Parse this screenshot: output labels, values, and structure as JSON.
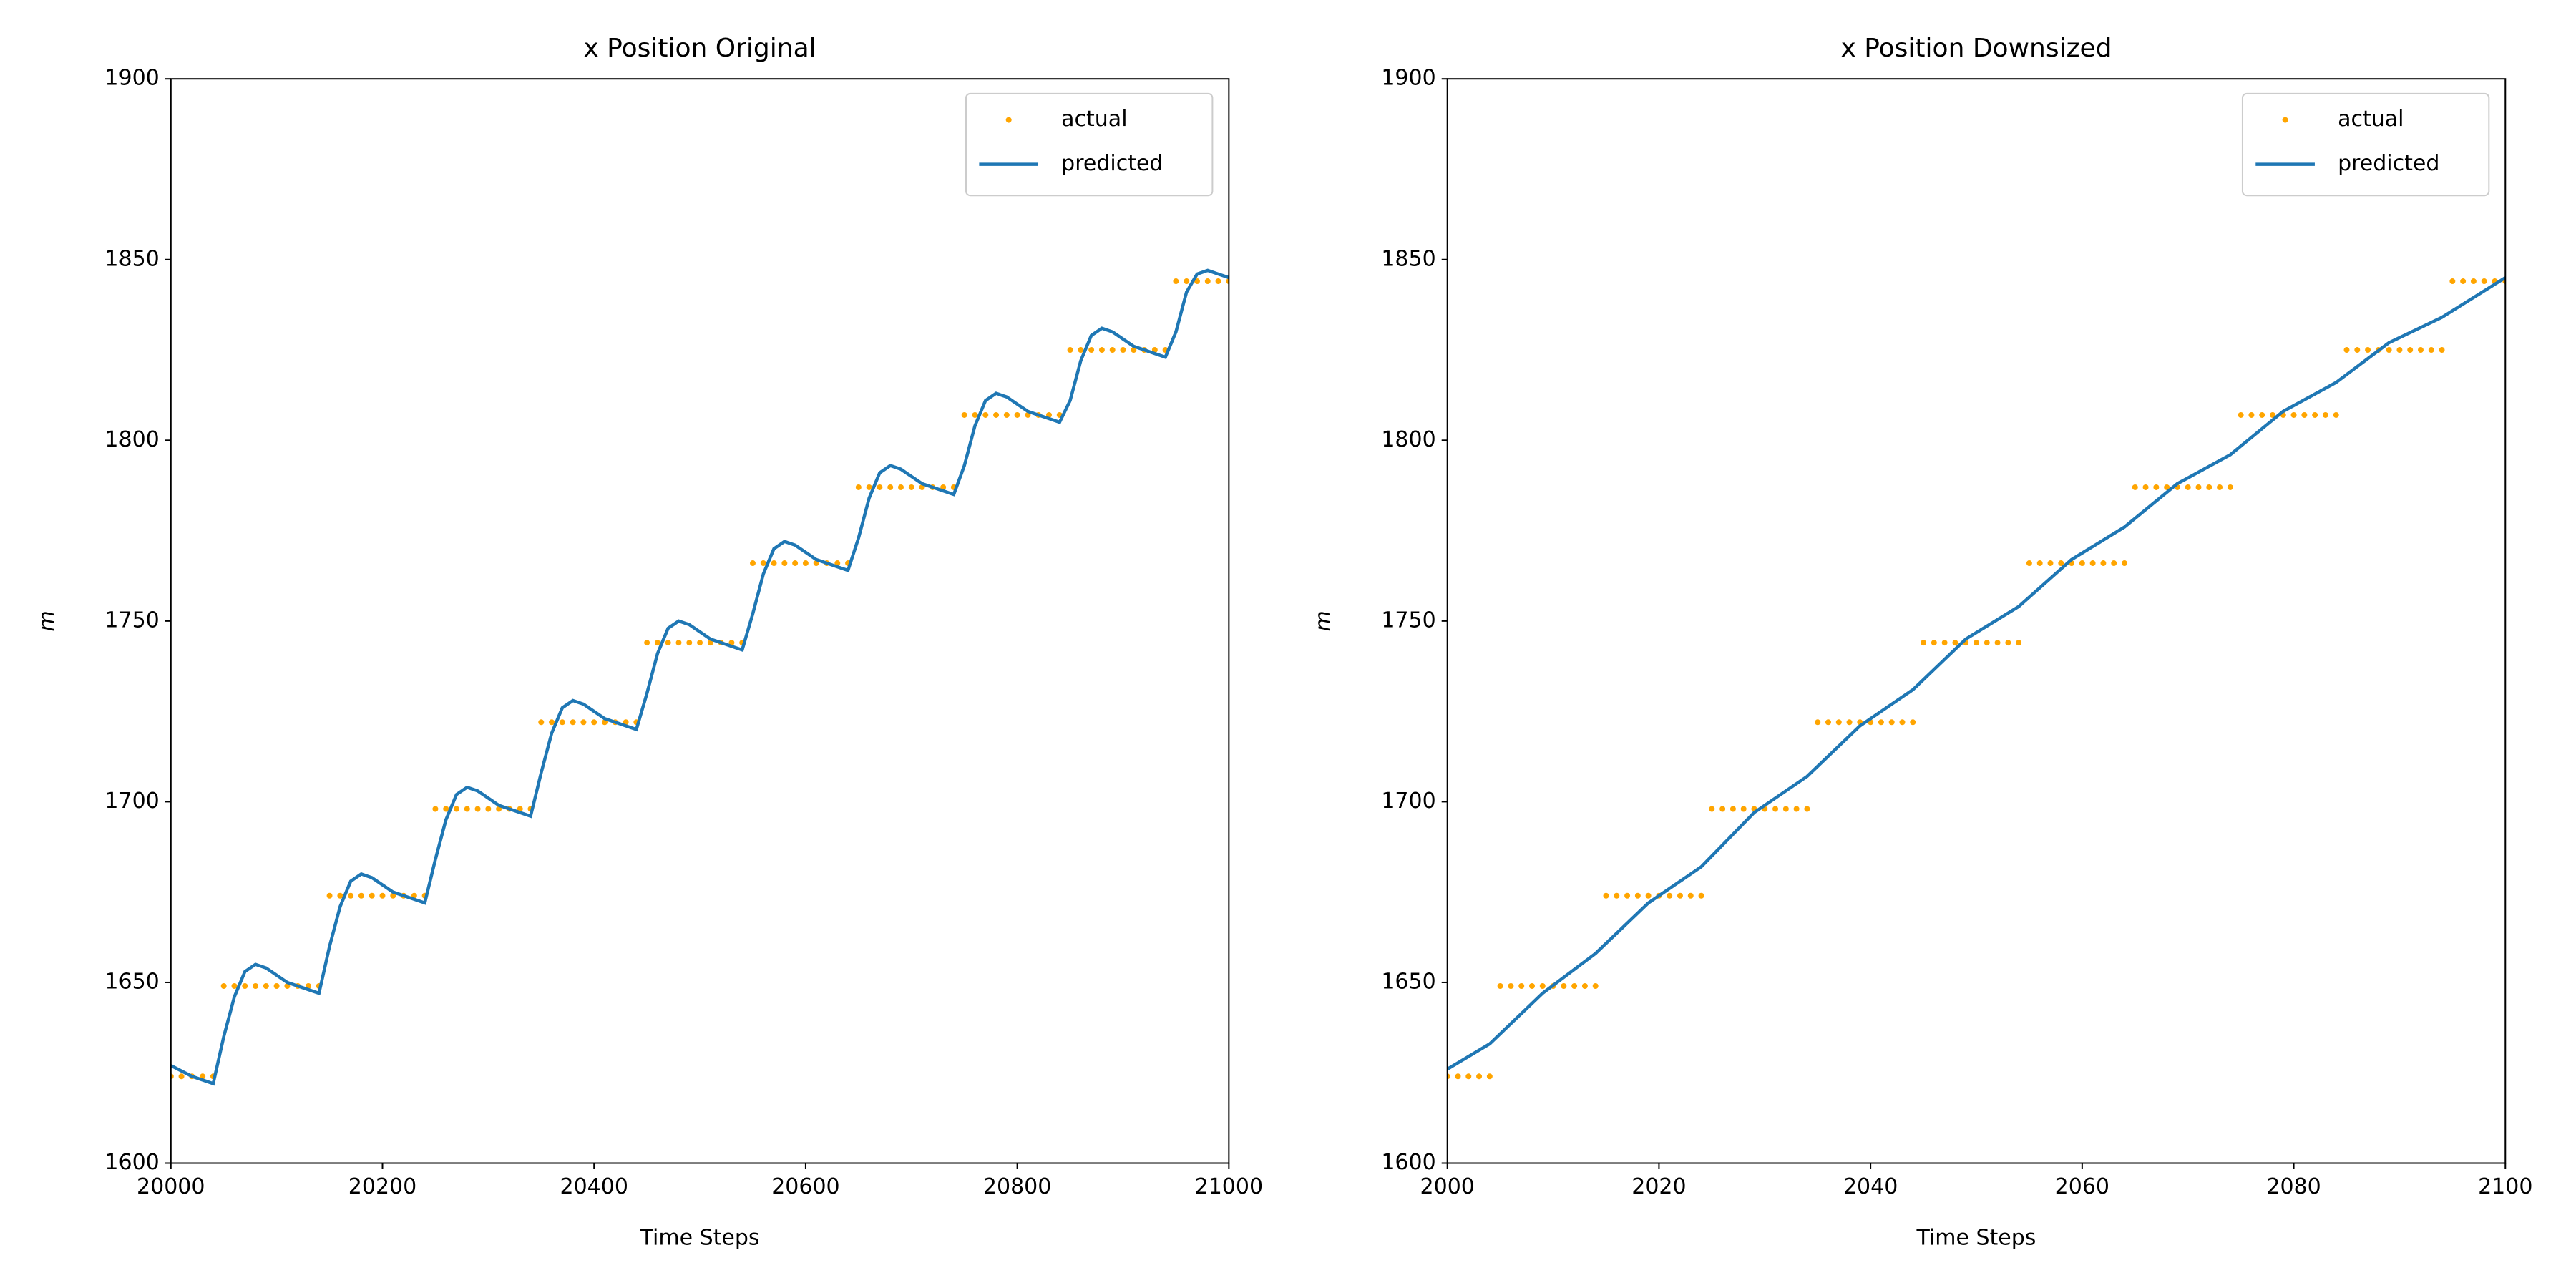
{
  "chart_data": [
    {
      "type": "line",
      "title": "x Position Original",
      "xlabel": "Time Steps",
      "ylabel": "m",
      "xlim": [
        20000,
        21000
      ],
      "xticks": [
        20000,
        20200,
        20400,
        20600,
        20800,
        21000
      ],
      "ylim": [
        1600,
        1900
      ],
      "yticks": [
        1600,
        1650,
        1700,
        1750,
        1800,
        1850,
        1900
      ],
      "legend": "upper right",
      "series": [
        {
          "name": "actual",
          "color": "#ffa500",
          "mode": "markers",
          "x": [
            20000,
            20010,
            20020,
            20030,
            20040,
            20050,
            20060,
            20070,
            20080,
            20090,
            20100,
            20110,
            20120,
            20130,
            20140,
            20150,
            20160,
            20170,
            20180,
            20190,
            20200,
            20210,
            20220,
            20230,
            20240,
            20250,
            20260,
            20270,
            20280,
            20290,
            20300,
            20310,
            20320,
            20330,
            20340,
            20350,
            20360,
            20370,
            20380,
            20390,
            20400,
            20410,
            20420,
            20430,
            20440,
            20450,
            20460,
            20470,
            20480,
            20490,
            20500,
            20510,
            20520,
            20530,
            20540,
            20550,
            20560,
            20570,
            20580,
            20590,
            20600,
            20610,
            20620,
            20630,
            20640,
            20650,
            20660,
            20670,
            20680,
            20690,
            20700,
            20710,
            20720,
            20730,
            20740,
            20750,
            20760,
            20770,
            20780,
            20790,
            20800,
            20810,
            20820,
            20830,
            20840,
            20850,
            20860,
            20870,
            20880,
            20890,
            20900,
            20910,
            20920,
            20930,
            20940,
            20950,
            20960,
            20970,
            20980,
            20990,
            21000
          ],
          "values": [
            1624,
            1624,
            1624,
            1624,
            1624,
            1649,
            1649,
            1649,
            1649,
            1649,
            1649,
            1649,
            1649,
            1649,
            1649,
            1674,
            1674,
            1674,
            1674,
            1674,
            1674,
            1674,
            1674,
            1674,
            1674,
            1698,
            1698,
            1698,
            1698,
            1698,
            1698,
            1698,
            1698,
            1698,
            1698,
            1722,
            1722,
            1722,
            1722,
            1722,
            1722,
            1722,
            1722,
            1722,
            1722,
            1744,
            1744,
            1744,
            1744,
            1744,
            1744,
            1744,
            1744,
            1744,
            1744,
            1766,
            1766,
            1766,
            1766,
            1766,
            1766,
            1766,
            1766,
            1766,
            1766,
            1787,
            1787,
            1787,
            1787,
            1787,
            1787,
            1787,
            1787,
            1787,
            1787,
            1807,
            1807,
            1807,
            1807,
            1807,
            1807,
            1807,
            1807,
            1807,
            1807,
            1825,
            1825,
            1825,
            1825,
            1825,
            1825,
            1825,
            1825,
            1825,
            1825,
            1844,
            1844,
            1844,
            1844,
            1844,
            1844
          ]
        },
        {
          "name": "predicted",
          "color": "#1f77b4",
          "mode": "lines",
          "x": [
            20000,
            20010,
            20020,
            20030,
            20040,
            20050,
            20060,
            20070,
            20080,
            20090,
            20100,
            20110,
            20120,
            20130,
            20140,
            20150,
            20160,
            20170,
            20180,
            20190,
            20200,
            20210,
            20220,
            20230,
            20240,
            20250,
            20260,
            20270,
            20280,
            20290,
            20300,
            20310,
            20320,
            20330,
            20340,
            20350,
            20360,
            20370,
            20380,
            20390,
            20400,
            20410,
            20420,
            20430,
            20440,
            20450,
            20460,
            20470,
            20480,
            20490,
            20500,
            20510,
            20520,
            20530,
            20540,
            20550,
            20560,
            20570,
            20580,
            20590,
            20600,
            20610,
            20620,
            20630,
            20640,
            20650,
            20660,
            20670,
            20680,
            20690,
            20700,
            20710,
            20720,
            20730,
            20740,
            20750,
            20760,
            20770,
            20780,
            20790,
            20800,
            20810,
            20820,
            20830,
            20840,
            20850,
            20860,
            20870,
            20880,
            20890,
            20900,
            20910,
            20920,
            20930,
            20940,
            20950,
            20960,
            20970,
            20980,
            20990,
            21000
          ],
          "values": [
            1627,
            1625.5,
            1624,
            1623,
            1622,
            1635,
            1646,
            1653,
            1655,
            1654,
            1652,
            1650,
            1649,
            1648,
            1647,
            1660,
            1671,
            1678,
            1680,
            1679,
            1677,
            1675,
            1674,
            1673,
            1672,
            1684,
            1695,
            1702,
            1704,
            1703,
            1701,
            1699,
            1698,
            1697,
            1696,
            1708,
            1719,
            1726,
            1728,
            1727,
            1725,
            1723,
            1722,
            1721,
            1720,
            1730,
            1741,
            1748,
            1750,
            1749,
            1747,
            1745,
            1744,
            1743,
            1742,
            1752,
            1763,
            1770,
            1772,
            1771,
            1769,
            1767,
            1766,
            1765,
            1764,
            1773,
            1784,
            1791,
            1793,
            1792,
            1790,
            1788,
            1787,
            1786,
            1785,
            1793,
            1804,
            1811,
            1813,
            1812,
            1810,
            1808,
            1807,
            1806,
            1805,
            1811,
            1822,
            1829,
            1831,
            1830,
            1828,
            1826,
            1825,
            1824,
            1823,
            1830,
            1841,
            1846,
            1847,
            1846,
            1845
          ]
        }
      ]
    },
    {
      "type": "line",
      "title": "x Position Downsized",
      "xlabel": "Time Steps",
      "ylabel": "m",
      "xlim": [
        2000,
        2100
      ],
      "xticks": [
        2000,
        2020,
        2040,
        2060,
        2080,
        2100
      ],
      "ylim": [
        1600,
        1900
      ],
      "yticks": [
        1600,
        1650,
        1700,
        1750,
        1800,
        1850,
        1900
      ],
      "legend": "upper right",
      "series": [
        {
          "name": "actual",
          "color": "#ffa500",
          "mode": "markers",
          "x": [
            2000,
            2001,
            2002,
            2003,
            2004,
            2005,
            2006,
            2007,
            2008,
            2009,
            2010,
            2011,
            2012,
            2013,
            2014,
            2015,
            2016,
            2017,
            2018,
            2019,
            2020,
            2021,
            2022,
            2023,
            2024,
            2025,
            2026,
            2027,
            2028,
            2029,
            2030,
            2031,
            2032,
            2033,
            2034,
            2035,
            2036,
            2037,
            2038,
            2039,
            2040,
            2041,
            2042,
            2043,
            2044,
            2045,
            2046,
            2047,
            2048,
            2049,
            2050,
            2051,
            2052,
            2053,
            2054,
            2055,
            2056,
            2057,
            2058,
            2059,
            2060,
            2061,
            2062,
            2063,
            2064,
            2065,
            2066,
            2067,
            2068,
            2069,
            2070,
            2071,
            2072,
            2073,
            2074,
            2075,
            2076,
            2077,
            2078,
            2079,
            2080,
            2081,
            2082,
            2083,
            2084,
            2085,
            2086,
            2087,
            2088,
            2089,
            2090,
            2091,
            2092,
            2093,
            2094,
            2095,
            2096,
            2097,
            2098,
            2099,
            2100
          ],
          "values": [
            1624,
            1624,
            1624,
            1624,
            1624,
            1649,
            1649,
            1649,
            1649,
            1649,
            1649,
            1649,
            1649,
            1649,
            1649,
            1674,
            1674,
            1674,
            1674,
            1674,
            1674,
            1674,
            1674,
            1674,
            1674,
            1698,
            1698,
            1698,
            1698,
            1698,
            1698,
            1698,
            1698,
            1698,
            1698,
            1722,
            1722,
            1722,
            1722,
            1722,
            1722,
            1722,
            1722,
            1722,
            1722,
            1744,
            1744,
            1744,
            1744,
            1744,
            1744,
            1744,
            1744,
            1744,
            1744,
            1766,
            1766,
            1766,
            1766,
            1766,
            1766,
            1766,
            1766,
            1766,
            1766,
            1787,
            1787,
            1787,
            1787,
            1787,
            1787,
            1787,
            1787,
            1787,
            1787,
            1807,
            1807,
            1807,
            1807,
            1807,
            1807,
            1807,
            1807,
            1807,
            1807,
            1825,
            1825,
            1825,
            1825,
            1825,
            1825,
            1825,
            1825,
            1825,
            1825,
            1844,
            1844,
            1844,
            1844,
            1844,
            1844
          ]
        },
        {
          "name": "predicted",
          "color": "#1f77b4",
          "mode": "lines",
          "x": [
            2000,
            2004,
            2009,
            2014,
            2019,
            2024,
            2029,
            2034,
            2039,
            2044,
            2049,
            2054,
            2059,
            2064,
            2069,
            2074,
            2079,
            2084,
            2089,
            2094,
            2100
          ],
          "values": [
            1626,
            1633,
            1647,
            1658,
            1672,
            1682,
            1697,
            1707,
            1721,
            1731,
            1745,
            1754,
            1767,
            1776,
            1788,
            1796,
            1808,
            1816,
            1827,
            1834,
            1845
          ]
        }
      ]
    }
  ]
}
